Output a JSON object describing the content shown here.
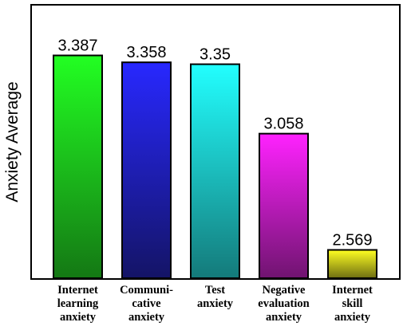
{
  "chart_data": {
    "type": "bar",
    "categories": [
      [
        "Internet",
        "learning",
        "anxiety"
      ],
      [
        "Communi-",
        "cative",
        "anxiety"
      ],
      [
        "Test",
        "anxiety"
      ],
      [
        "Negative",
        "evaluation",
        "anxiety"
      ],
      [
        "Internet",
        "skill",
        "anxiety"
      ]
    ],
    "values": [
      3.387,
      3.358,
      3.35,
      3.058,
      2.569
    ],
    "data_labels": [
      "3.387",
      "3.358",
      "3.35",
      "3.058",
      "2.569"
    ],
    "ylabel": "Anxiety Average",
    "xlabel": "",
    "ylim": [
      2.45,
      3.6
    ],
    "grid": false,
    "colors": [
      [
        "#22ff22",
        "#147814"
      ],
      [
        "#2828ff",
        "#141466"
      ],
      [
        "#22ffff",
        "#147a7a"
      ],
      [
        "#ff22ff",
        "#701470"
      ],
      [
        "#ffff22",
        "#6e6e12"
      ]
    ]
  }
}
